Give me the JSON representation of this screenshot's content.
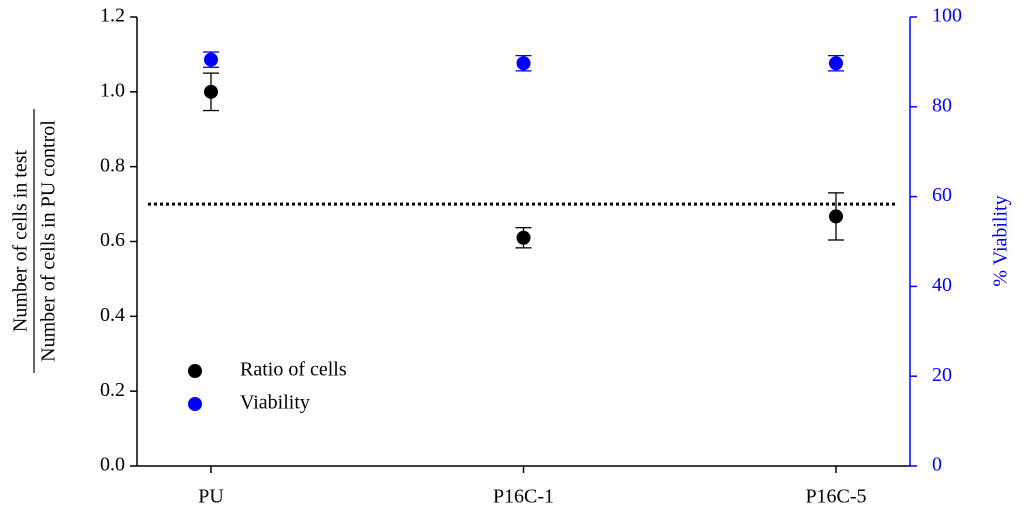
{
  "chart_data": {
    "type": "scatter",
    "categories": [
      "PU",
      "P16C-1",
      "P16C-5"
    ],
    "ylabel_numerator": "Number of cells in test",
    "ylabel_denominator": "Number of cells in PU control",
    "y2label": "% Viability",
    "series": [
      {
        "name": "Ratio of cells",
        "color": "#000000",
        "values": [
          1.0,
          0.61,
          0.667
        ],
        "errors": [
          0.05,
          0.027,
          0.063
        ]
      },
      {
        "name": "Viability",
        "color": "#0000ff",
        "axis": "y2",
        "values": [
          90.5,
          89.7,
          89.7
        ],
        "errors": [
          1.7,
          1.7,
          1.7
        ]
      }
    ],
    "reference_line": 0.7,
    "ylim": [
      0,
      1.2
    ],
    "yticks": [
      {
        "value": 0,
        "label": "0.0"
      },
      0.2,
      0.4,
      0.6,
      0.8,
      {
        "value": 1,
        "label": "1.0"
      },
      1.2
    ],
    "y2lim": [
      0,
      100
    ],
    "y2ticks": [
      0,
      20,
      40,
      60,
      80,
      100
    ],
    "y2color": "#0000ff"
  }
}
